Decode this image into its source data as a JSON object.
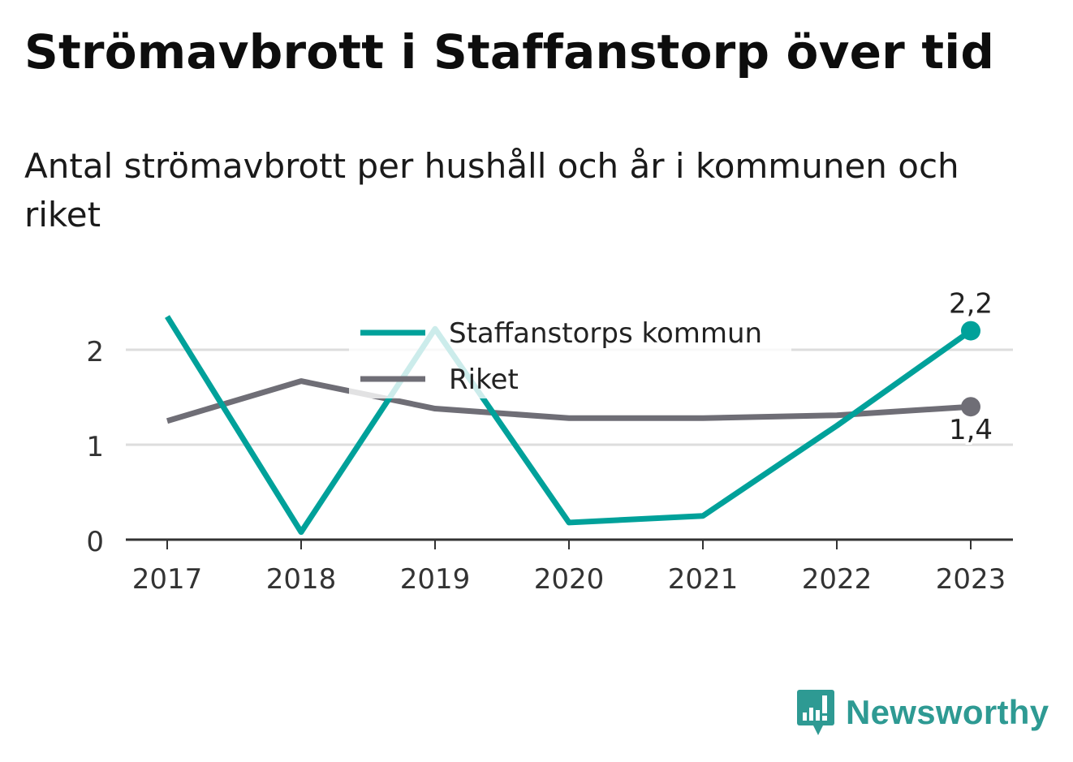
{
  "header": {
    "title": "Strömavbrott i Staffanstorp över tid",
    "subtitle": "Antal strömavbrott per hushåll och år i kommunen och riket"
  },
  "brand": {
    "name": "Newsworthy",
    "color": "#2e9a93"
  },
  "colors": {
    "kommun": "#00a19a",
    "riket": "#6f6e76",
    "grid": "#dddddd",
    "axis": "#333333"
  },
  "chart_data": {
    "type": "line",
    "x": [
      "2017",
      "2018",
      "2019",
      "2020",
      "2021",
      "2022",
      "2023"
    ],
    "ylim": [
      0,
      2.4
    ],
    "yticks": [
      "0",
      "1",
      "2"
    ],
    "grid": true,
    "legend_placement": "top-center",
    "series": [
      {
        "name": "Staffanstorps kommun",
        "values": [
          2.35,
          0.08,
          2.22,
          0.18,
          0.25,
          1.2,
          2.2
        ],
        "end_label": "2,2"
      },
      {
        "name": "Riket",
        "values": [
          1.25,
          1.67,
          1.38,
          1.28,
          1.28,
          1.31,
          1.4
        ],
        "end_label": "1,4"
      }
    ]
  }
}
